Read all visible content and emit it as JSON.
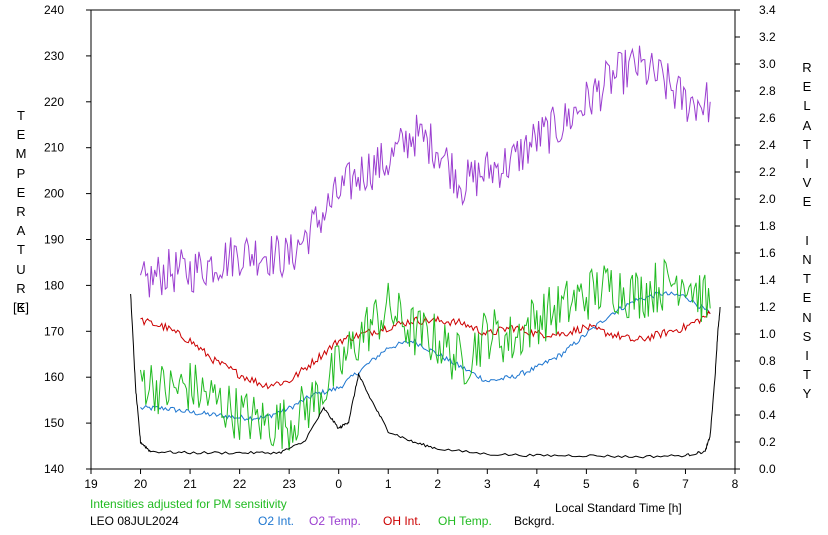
{
  "chart_data": {
    "type": "line",
    "xlabel": "Local Standard Time [h]",
    "ylabel_left": "TEMPERATURE",
    "ylabel_left_unit": "[K]",
    "ylabel_right": "RELATIVE INTENSITY",
    "note": "Intensities adjusted for PM sensitivity",
    "station_date": "LEO 08JUL2024",
    "x_ticks": [
      "19",
      "20",
      "21",
      "22",
      "23",
      "0",
      "1",
      "2",
      "3",
      "4",
      "5",
      "6",
      "7",
      "8"
    ],
    "xlim": [
      19,
      32
    ],
    "ylim_left": [
      140,
      240
    ],
    "y_ticks_left": [
      "140",
      "150",
      "160",
      "170",
      "180",
      "190",
      "200",
      "210",
      "220",
      "230",
      "240"
    ],
    "ylim_right": [
      0.0,
      3.4
    ],
    "y_ticks_right": [
      "0.0",
      "0.2",
      "0.4",
      "0.6",
      "0.8",
      "1.0",
      "1.2",
      "1.4",
      "1.6",
      "1.8",
      "2.0",
      "2.2",
      "2.4",
      "2.6",
      "2.8",
      "3.0",
      "3.2",
      "3.4"
    ],
    "grid": false,
    "legend_position": "bottom",
    "series": [
      {
        "name": "O2 Int.",
        "color": "#1f77d0",
        "axis": "right",
        "noise": 0.02,
        "x": [
          20.0,
          20.5,
          21.0,
          21.5,
          22.0,
          22.5,
          23.0,
          23.5,
          24.0,
          24.5,
          25.0,
          25.5,
          26.0,
          26.5,
          27.0,
          27.5,
          28.0,
          28.5,
          29.0,
          29.5,
          30.0,
          30.5,
          31.0,
          31.5
        ],
        "y": [
          0.45,
          0.45,
          0.42,
          0.4,
          0.38,
          0.38,
          0.45,
          0.55,
          0.6,
          0.75,
          0.9,
          0.95,
          0.85,
          0.75,
          0.65,
          0.68,
          0.75,
          0.85,
          1.0,
          1.15,
          1.25,
          1.3,
          1.28,
          1.15
        ]
      },
      {
        "name": "O2 Temp.",
        "color": "#9b3fd0",
        "axis": "left",
        "noise": 5,
        "x": [
          20.0,
          20.5,
          21.0,
          21.5,
          22.0,
          22.5,
          23.0,
          23.5,
          24.0,
          24.5,
          25.0,
          25.5,
          26.0,
          26.5,
          27.0,
          27.5,
          28.0,
          28.5,
          29.0,
          29.5,
          30.0,
          30.5,
          31.0,
          31.5
        ],
        "y": [
          180,
          183,
          183,
          185,
          187,
          187,
          186,
          193,
          200,
          205,
          207,
          213,
          210,
          202,
          205,
          207,
          212,
          215,
          220,
          225,
          228,
          225,
          220,
          220
        ]
      },
      {
        "name": "OH Int.",
        "color": "#cc0000",
        "axis": "right",
        "noise": 0.03,
        "x": [
          20.0,
          20.5,
          21.0,
          21.5,
          22.0,
          22.5,
          23.0,
          23.5,
          24.0,
          24.5,
          25.0,
          25.5,
          26.0,
          26.5,
          27.0,
          27.5,
          28.0,
          28.5,
          29.0,
          29.5,
          30.0,
          30.5,
          31.0,
          31.5
        ],
        "y": [
          1.1,
          1.05,
          0.95,
          0.8,
          0.7,
          0.62,
          0.65,
          0.8,
          0.95,
          1.0,
          1.05,
          1.1,
          1.1,
          1.08,
          1.0,
          1.05,
          1.0,
          1.0,
          1.05,
          1.0,
          0.95,
          1.0,
          1.05,
          1.15
        ]
      },
      {
        "name": "OH Temp.",
        "color": "#22bb22",
        "axis": "left",
        "noise": 6,
        "x": [
          20.0,
          20.5,
          21.0,
          21.5,
          22.0,
          22.5,
          23.0,
          23.5,
          24.0,
          24.5,
          25.0,
          25.5,
          26.0,
          26.5,
          27.0,
          27.5,
          28.0,
          28.5,
          29.0,
          29.5,
          30.0,
          30.5,
          31.0,
          31.5
        ],
        "y": [
          160,
          157,
          158,
          155,
          152,
          150,
          150,
          155,
          162,
          170,
          175,
          170,
          168,
          163,
          170,
          168,
          173,
          175,
          178,
          180,
          178,
          180,
          182,
          175
        ]
      },
      {
        "name": "Bckgrd.",
        "color": "#000000",
        "axis": "right",
        "noise": 0.01,
        "x": [
          19.8,
          19.9,
          20.0,
          20.2,
          21.0,
          22.0,
          22.8,
          23.3,
          23.7,
          24.0,
          24.2,
          24.4,
          24.6,
          25.0,
          25.5,
          26.0,
          27.0,
          28.0,
          29.0,
          30.0,
          31.0,
          31.4,
          31.5,
          31.6,
          31.65,
          31.7
        ],
        "y": [
          1.3,
          0.6,
          0.2,
          0.13,
          0.12,
          0.12,
          0.12,
          0.2,
          0.45,
          0.3,
          0.35,
          0.7,
          0.55,
          0.28,
          0.2,
          0.15,
          0.11,
          0.1,
          0.1,
          0.09,
          0.1,
          0.13,
          0.25,
          0.7,
          1.0,
          1.2
        ]
      }
    ]
  }
}
